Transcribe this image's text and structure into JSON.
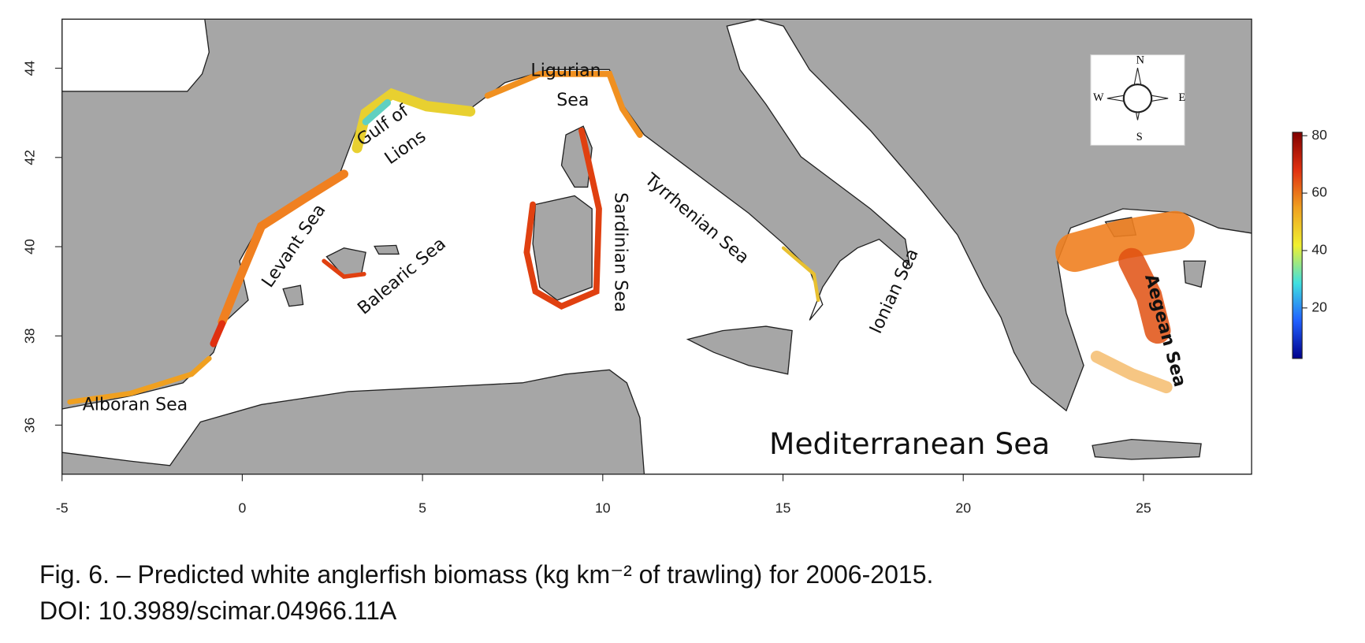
{
  "chart_data": {
    "type": "map",
    "xlim": [
      -5,
      28
    ],
    "ylim": [
      34.9,
      45.1
    ],
    "xticks": [
      -5,
      0,
      5,
      10,
      15,
      20,
      25
    ],
    "yticks": [
      36,
      38,
      40,
      42,
      44
    ],
    "colorbar": {
      "lim": [
        2.4,
        81.2
      ],
      "ticks": [
        20,
        40,
        60,
        80
      ],
      "colors": [
        "#00008b",
        "#2060ff",
        "#40e0e0",
        "#f0f030",
        "#f0a020",
        "#e03010",
        "#800000"
      ]
    },
    "land_color": "#a6a6a6",
    "labels": [
      "Ligurian",
      "Sea",
      "Gulf of",
      "Lions",
      "Levant Sea",
      "Balearic Sea",
      "Sardinian Sea",
      "Tyrrhenian Sea",
      "Ionian Sea",
      "Aegean Sea",
      "Alboran Sea",
      "Mediterranean Sea"
    ],
    "compass": [
      "N",
      "E",
      "S",
      "W"
    ],
    "caption": [
      "Fig. 6. – Predicted white anglerfish biomass (kg km⁻² of trawling) for 2006-2015.",
      "DOI: 10.3989/scimar.04966.11A"
    ]
  }
}
